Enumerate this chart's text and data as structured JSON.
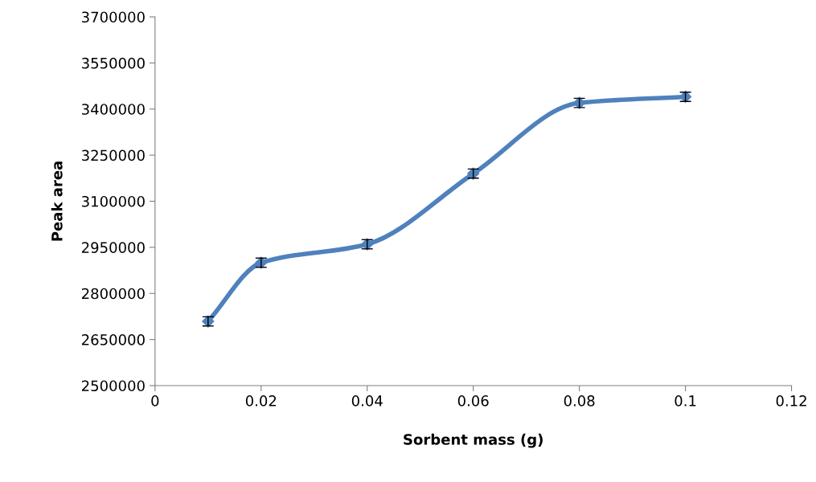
{
  "chart_data": {
    "type": "line",
    "xlabel": "Sorbent mass (g)",
    "ylabel": "Peak area",
    "x": [
      0.01,
      0.02,
      0.04,
      0.06,
      0.08,
      0.1
    ],
    "series": [
      {
        "color": "#4f81bd",
        "values": [
          2709000,
          2900000,
          2960000,
          3190000,
          3420000,
          3440000
        ],
        "errors": [
          15000,
          15000,
          15000,
          15000,
          15000,
          15000
        ]
      }
    ],
    "xlim": [
      0,
      0.12
    ],
    "xticks": [
      {
        "value": 0,
        "label": "0"
      },
      0.02,
      0.04,
      0.06,
      0.08,
      0.1,
      0.12
    ],
    "ylim": [
      2500000,
      3700000
    ],
    "yticks": [
      2500000,
      2650000,
      2800000,
      2950000,
      3100000,
      3250000,
      3400000,
      3550000,
      3700000
    ],
    "grid": false,
    "legend": false,
    "marker": "diamond",
    "line_style": "solid"
  }
}
